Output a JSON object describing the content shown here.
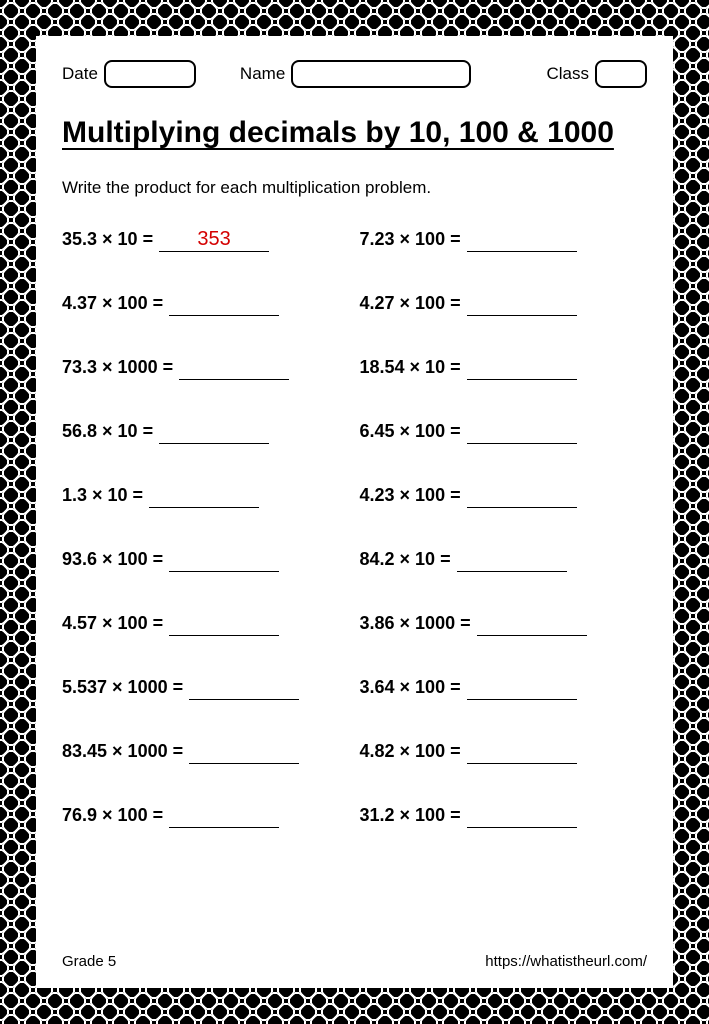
{
  "header": {
    "date_label": "Date",
    "name_label": "Name",
    "class_label": "Class"
  },
  "title": "Multiplying decimals by 10, 100 & 1000",
  "instructions": "Write the product for each multiplication problem.",
  "answer_color": "#d40000",
  "problems": [
    {
      "expr": "35.3 × 10 =",
      "answer": "353"
    },
    {
      "expr": "7.23 × 100 =",
      "answer": ""
    },
    {
      "expr": "4.37 × 100 =",
      "answer": ""
    },
    {
      "expr": "4.27 × 100 =",
      "answer": ""
    },
    {
      "expr": "73.3 × 1000 =",
      "answer": ""
    },
    {
      "expr": "18.54 × 10 =",
      "answer": ""
    },
    {
      "expr": "56.8 × 10 =",
      "answer": ""
    },
    {
      "expr": "6.45 × 100 =",
      "answer": ""
    },
    {
      "expr": "1.3 × 10 =",
      "answer": ""
    },
    {
      "expr": "4.23 × 100 =",
      "answer": ""
    },
    {
      "expr": "93.6 × 100 =",
      "answer": ""
    },
    {
      "expr": "84.2 × 10 =",
      "answer": ""
    },
    {
      "expr": "4.57 × 100 =",
      "answer": ""
    },
    {
      "expr": "3.86 × 1000 =",
      "answer": ""
    },
    {
      "expr": "5.537 × 1000 =",
      "answer": ""
    },
    {
      "expr": "3.64 × 100 =",
      "answer": ""
    },
    {
      "expr": "83.45 × 1000 =",
      "answer": ""
    },
    {
      "expr": "4.82 × 100 =",
      "answer": ""
    },
    {
      "expr": "76.9 × 100 =",
      "answer": ""
    },
    {
      "expr": "31.2 × 100 =",
      "answer": ""
    }
  ],
  "footer": {
    "grade": "Grade 5",
    "url": "https://whatistheurl.com/"
  }
}
